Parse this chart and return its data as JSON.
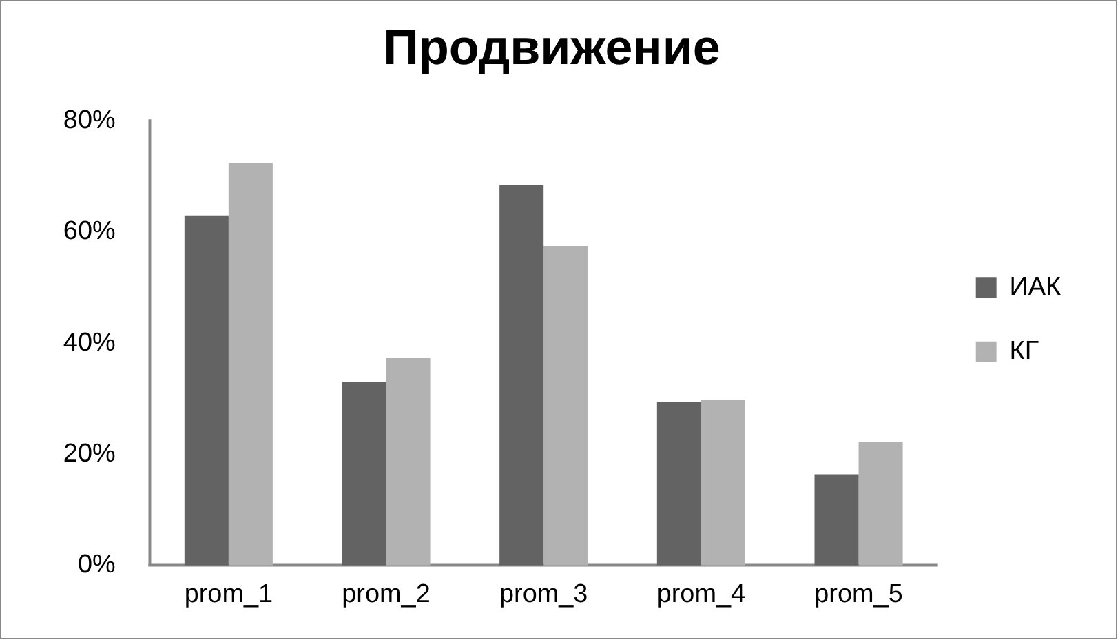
{
  "chart_data": {
    "type": "bar",
    "title": "Продвижение",
    "categories": [
      "prom_1",
      "prom_2",
      "prom_3",
      "prom_4",
      "prom_5"
    ],
    "series": [
      {
        "name": "ИАК",
        "color": "#636363",
        "values": [
          63,
          33,
          68.5,
          29.4,
          16.4
        ]
      },
      {
        "name": "КГ",
        "color": "#b2b2b2",
        "values": [
          72.5,
          37.3,
          57.5,
          29.8,
          22.3
        ]
      }
    ],
    "ylim": [
      0,
      80
    ],
    "yticks": [
      {
        "value": 0,
        "label": "0%"
      },
      {
        "value": 20,
        "label": "20%"
      },
      {
        "value": 40,
        "label": "40%"
      },
      {
        "value": 60,
        "label": "60%"
      },
      {
        "value": 80,
        "label": "80%"
      }
    ],
    "grid": false,
    "legend": "right"
  }
}
